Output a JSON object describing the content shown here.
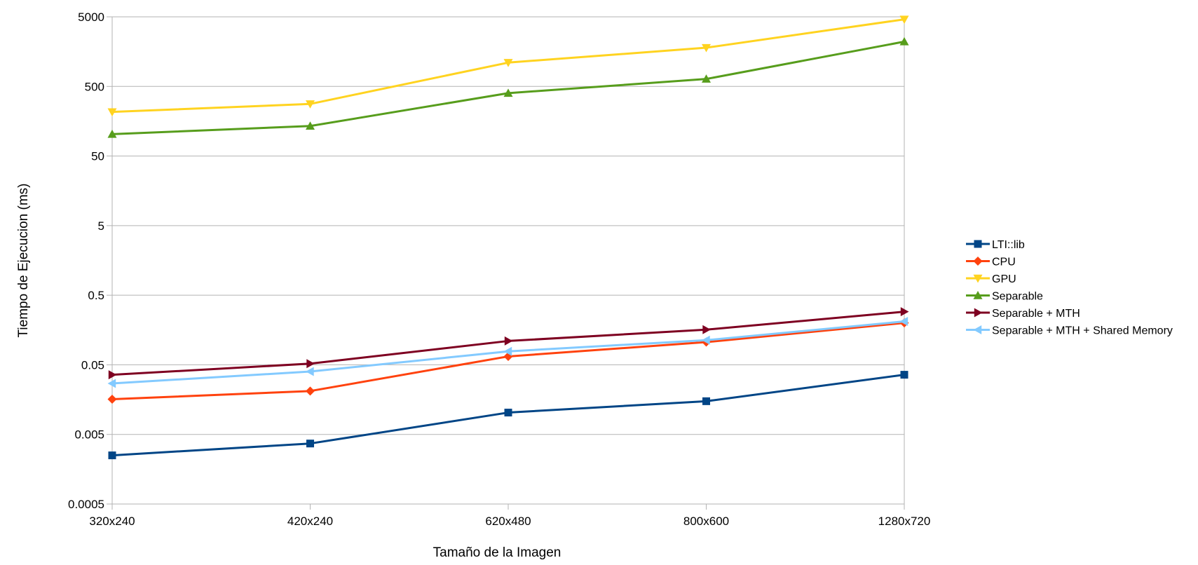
{
  "chart_data": {
    "type": "line",
    "title": "",
    "xlabel": "Tamaño de la Imagen",
    "ylabel": "Tiempo de Ejecucion (ms)",
    "yscale": "log",
    "ylim": [
      0.0005,
      5000
    ],
    "yticks": [
      0.0005,
      0.005,
      0.05,
      0.5,
      5,
      50,
      500,
      5000
    ],
    "ytick_labels": [
      "0.0005",
      "0.005",
      "0.05",
      "0.5",
      "5",
      "50",
      "500",
      "5000"
    ],
    "grid": "horizontal",
    "legend_position": "right",
    "categories": [
      "320x240",
      "420x240",
      "620x480",
      "800x600",
      "1280x720"
    ],
    "series": [
      {
        "name": "LTI::lib",
        "color": "#004586",
        "marker": "square",
        "values": [
          0.0025,
          0.0037,
          0.0103,
          0.015,
          0.036
        ]
      },
      {
        "name": "CPU",
        "color": "#ff420e",
        "marker": "diamond",
        "values": [
          0.016,
          0.021,
          0.066,
          0.106,
          0.2
        ]
      },
      {
        "name": "GPU",
        "color": "#ffd320",
        "marker": "triangle-down",
        "values": [
          215,
          280,
          1100,
          1800,
          4600
        ]
      },
      {
        "name": "Separable",
        "color": "#579d1c",
        "marker": "triangle-up",
        "values": [
          103,
          135,
          400,
          640,
          2200
        ]
      },
      {
        "name": "Separable + MTH",
        "color": "#7e0021",
        "marker": "triangle-right",
        "values": [
          0.036,
          0.052,
          0.11,
          0.16,
          0.29
        ]
      },
      {
        "name": "Separable + MTH + Shared Memory",
        "color": "#83caff",
        "marker": "triangle-left",
        "values": [
          0.027,
          0.04,
          0.078,
          0.113,
          0.21
        ]
      }
    ]
  }
}
